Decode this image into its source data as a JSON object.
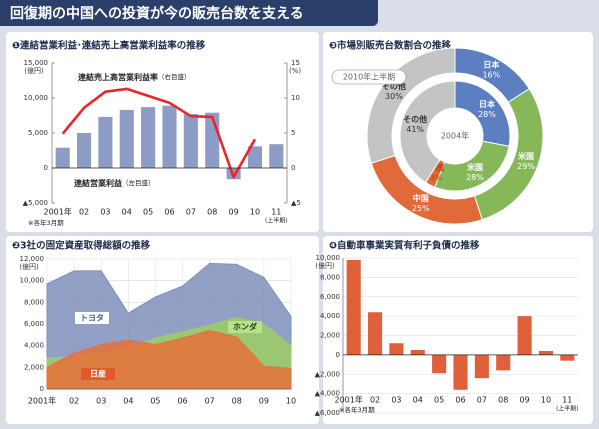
{
  "header": {
    "title": "回復期の中国への投資が今の販売台数を支える"
  },
  "chart_data": [
    {
      "type": "bar_line",
      "title": "❶連結営業利益･連結売上高営業利益率の推移",
      "categories": [
        "2001年",
        "02",
        "03",
        "04",
        "05",
        "06",
        "07",
        "08",
        "09",
        "10",
        "11"
      ],
      "category_note": "(上半期)",
      "series": [
        {
          "name": "連結営業利益",
          "note": "（左目盛）",
          "color": "#8d9cc4",
          "values": [
            2900,
            5000,
            7300,
            8300,
            8700,
            8900,
            7700,
            7900,
            -1600,
            3100,
            3400
          ]
        },
        {
          "name": "連結売上高営業利益率",
          "note": "（右目盛）",
          "axis": "y2",
          "color": "#e8262b",
          "values": [
            4.9,
            8.6,
            10.9,
            11.3,
            10.3,
            9.3,
            7.4,
            7.3,
            -1.3,
            4.1,
            null
          ]
        }
      ],
      "ylim": [
        -5000,
        15000
      ],
      "yticks": [
        {
          "value": 15000,
          "label": "15,000"
        },
        {
          "value": 10000,
          "label": "10,000"
        },
        {
          "value": 5000,
          "label": "5,000"
        },
        0,
        {
          "value": -5000,
          "label": "▲5,000"
        }
      ],
      "y2lim": [
        -5,
        15
      ],
      "y2ticks": [
        15,
        10,
        5,
        0,
        {
          "value": -5,
          "label": "▲5"
        }
      ],
      "y_unit": "(億円)",
      "y2_unit": "(%)",
      "note": "※各年3月期"
    },
    {
      "type": "area",
      "title": "❷3社の固定資産取得総額の推移",
      "categories": [
        "2001年",
        "02",
        "03",
        "04",
        "05",
        "06",
        "07",
        "08",
        "09",
        "10"
      ],
      "series": [
        {
          "name": "トヨタ",
          "color": "#7f8fbb",
          "values": [
            9700,
            10900,
            10900,
            7000,
            8500,
            9500,
            11600,
            11500,
            10300,
            6700
          ]
        },
        {
          "name": "ホンダ",
          "color": "#9ccc65",
          "values": [
            2900,
            2900,
            3300,
            3800,
            4700,
            5300,
            5900,
            6600,
            6000,
            4000
          ]
        },
        {
          "name": "日産",
          "color": "#e8703a",
          "values": [
            2000,
            3300,
            4100,
            4500,
            4100,
            4700,
            5400,
            4800,
            2100,
            1900
          ]
        }
      ],
      "ylim": [
        0,
        12000
      ],
      "yticks": [
        0,
        {
          "value": 2000,
          "label": "2,000"
        },
        {
          "value": 4000,
          "label": "4,000"
        },
        {
          "value": 6000,
          "label": "6,000"
        },
        {
          "value": 8000,
          "label": "8,000"
        },
        {
          "value": 10000,
          "label": "10,000"
        },
        {
          "value": 12000,
          "label": "12,000"
        }
      ],
      "y_unit": "(億円)",
      "grid": true
    },
    {
      "type": "donut",
      "title": "❸市場別販売台数割合の推移",
      "colors": [
        "#5b7fc0",
        "#86b85a",
        "#e06a3a",
        "#c4c4c4"
      ],
      "rings": [
        {
          "name": "2010年上半期",
          "labels": [
            "日本",
            "米国",
            "中国",
            "その他"
          ],
          "values": [
            16,
            29,
            25,
            30
          ],
          "value_labels": [
            "16%",
            "29%",
            "25%",
            "30%"
          ]
        },
        {
          "name": "2004年",
          "labels": [
            "日本",
            "米国",
            "中国",
            "その他"
          ],
          "values": [
            28,
            28,
            3,
            41
          ],
          "value_labels": [
            "28%",
            "28%",
            "3%",
            "41%"
          ]
        }
      ]
    },
    {
      "type": "bar",
      "title": "❹自動車事業実質有利子負債の推移",
      "categories": [
        "2001年",
        "02",
        "03",
        "04",
        "05",
        "06",
        "07",
        "08",
        "09",
        "10",
        "11"
      ],
      "category_note": "(上半期)",
      "values": [
        9800,
        4400,
        1200,
        500,
        -1900,
        -3600,
        -2400,
        -1600,
        4000,
        400,
        -600
      ],
      "color": "#e0603a",
      "ylim": [
        -6000,
        10000
      ],
      "yticks": [
        {
          "value": 10000,
          "label": "10,000"
        },
        {
          "value": 8000,
          "label": "8,000"
        },
        {
          "value": 6000,
          "label": "6,000"
        },
        {
          "value": 4000,
          "label": "4,000"
        },
        {
          "value": 2000,
          "label": "2,000"
        },
        0,
        {
          "value": -2000,
          "label": "▲2,000"
        },
        {
          "value": -4000,
          "label": "▲4,000"
        },
        {
          "value": -6000,
          "label": "▲6,000"
        }
      ],
      "y_unit": "(億円)",
      "note": "※各年3月期",
      "grid": true
    }
  ]
}
